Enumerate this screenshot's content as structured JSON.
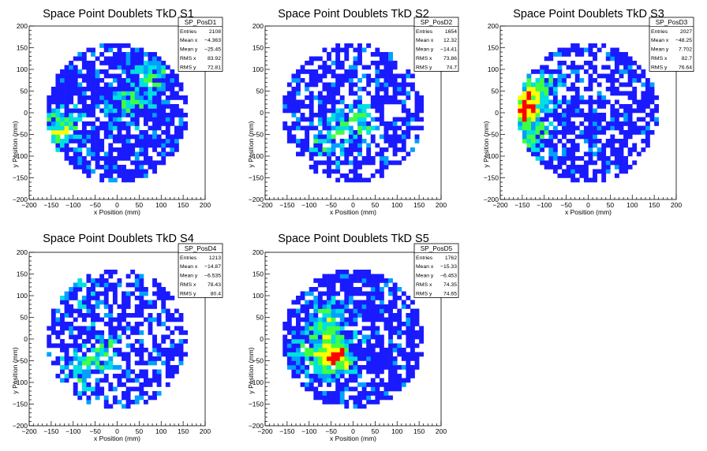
{
  "canvas": {
    "background": "#ffffff",
    "axis_color": "#000000"
  },
  "palette": [
    "#1a1aff",
    "#00a0ff",
    "#00e0e0",
    "#40ff40",
    "#ffff00",
    "#ff0000"
  ],
  "chart_data": [
    {
      "type": "heatmap",
      "title": "Space Point Doublets TkD S1",
      "xlabel": "x Position (mm)",
      "ylabel": "y Position (mm)",
      "xlim": [
        -200,
        200
      ],
      "ylim": [
        -200,
        200
      ],
      "xticks": [
        "−200",
        "−150",
        "−100",
        "−50",
        "0",
        "50",
        "100",
        "150",
        "200"
      ],
      "yticks": [
        "−200",
        "−150",
        "−100",
        "−50",
        "0",
        "50",
        "100",
        "150",
        "200"
      ],
      "bin_width": 10,
      "radius": 160,
      "seed": 11,
      "fill_probability": 0.78,
      "hotspots": [
        [
          -130,
          -40,
          2.2
        ],
        [
          30,
          20,
          1.4
        ],
        [
          80,
          90,
          1.2
        ]
      ],
      "stats": {
        "name": "SP_PosD1",
        "rows": [
          [
            "Entries",
            "2108"
          ],
          [
            "Mean x",
            "−4.363"
          ],
          [
            "Mean y",
            "−25.45"
          ],
          [
            "RMS x",
            "83.92"
          ],
          [
            "RMS y",
            "72.81"
          ]
        ]
      }
    },
    {
      "type": "heatmap",
      "title": "Space Point Doublets TkD S2",
      "xlabel": "x Position (mm)",
      "ylabel": "y Position (mm)",
      "xlim": [
        -200,
        200
      ],
      "ylim": [
        -200,
        200
      ],
      "xticks": [
        "−200",
        "−150",
        "−100",
        "−50",
        "0",
        "50",
        "100",
        "150",
        "200"
      ],
      "yticks": [
        "−200",
        "−150",
        "−100",
        "−50",
        "0",
        "50",
        "100",
        "150",
        "200"
      ],
      "bin_width": 10,
      "radius": 160,
      "seed": 23,
      "fill_probability": 0.62,
      "hotspots": [
        [
          10,
          -20,
          1.5
        ],
        [
          -60,
          -60,
          1.2
        ]
      ],
      "stats": {
        "name": "SP_PosD2",
        "rows": [
          [
            "Entries",
            "1654"
          ],
          [
            "Mean x",
            "12.32"
          ],
          [
            "Mean y",
            "−14.41"
          ],
          [
            "RMS x",
            "73.86"
          ],
          [
            "RMS y",
            "74.7"
          ]
        ]
      }
    },
    {
      "type": "heatmap",
      "title": "Space Point Doublets TkD S3",
      "xlabel": "x Position (mm)",
      "ylabel": "y Position (mm)",
      "xlim": [
        -200,
        200
      ],
      "ylim": [
        -200,
        200
      ],
      "xticks": [
        "−200",
        "−150",
        "−100",
        "−50",
        "0",
        "50",
        "100",
        "150",
        "200"
      ],
      "yticks": [
        "−200",
        "−150",
        "−100",
        "−50",
        "0",
        "50",
        "100",
        "150",
        "200"
      ],
      "bin_width": 10,
      "radius": 160,
      "seed": 37,
      "fill_probability": 0.66,
      "hotspots": [
        [
          -145,
          10,
          3.2
        ],
        [
          -110,
          60,
          1.6
        ],
        [
          -120,
          -60,
          1.3
        ]
      ],
      "stats": {
        "name": "SP_PosD3",
        "rows": [
          [
            "Entries",
            "2027"
          ],
          [
            "Mean x",
            "−48.25"
          ],
          [
            "Mean y",
            "7.702"
          ],
          [
            "RMS x",
            "82.7"
          ],
          [
            "RMS y",
            "76.64"
          ]
        ]
      }
    },
    {
      "type": "heatmap",
      "title": "Space Point Doublets TkD S4",
      "xlabel": "x Position (mm)",
      "ylabel": "y Position (mm)",
      "xlim": [
        -200,
        200
      ],
      "ylim": [
        -200,
        200
      ],
      "xticks": [
        "−200",
        "−150",
        "−100",
        "−50",
        "0",
        "50",
        "100",
        "150",
        "200"
      ],
      "yticks": [
        "−200",
        "−150",
        "−100",
        "−50",
        "0",
        "50",
        "100",
        "150",
        "200"
      ],
      "bin_width": 10,
      "radius": 160,
      "seed": 41,
      "fill_probability": 0.58,
      "hotspots": [
        [
          -40,
          -30,
          1.6
        ],
        [
          -80,
          -90,
          1.3
        ],
        [
          -90,
          110,
          1.0
        ]
      ],
      "stats": {
        "name": "SP_PosD4",
        "rows": [
          [
            "Entries",
            "1213"
          ],
          [
            "Mean x",
            "−14.87"
          ],
          [
            "Mean y",
            "−6.535"
          ],
          [
            "RMS x",
            "78.43"
          ],
          [
            "RMS y",
            "80.4"
          ]
        ]
      }
    },
    {
      "type": "heatmap",
      "title": "Space Point Doublets TkD S5",
      "xlabel": "x Position (mm)",
      "ylabel": "y Position (mm)",
      "xlim": [
        -200,
        200
      ],
      "ylim": [
        -200,
        200
      ],
      "xticks": [
        "−200",
        "−150",
        "−100",
        "−50",
        "0",
        "50",
        "100",
        "150",
        "200"
      ],
      "yticks": [
        "−200",
        "−150",
        "−100",
        "−50",
        "0",
        "50",
        "100",
        "150",
        "200"
      ],
      "bin_width": 10,
      "radius": 160,
      "seed": 53,
      "fill_probability": 0.74,
      "hotspots": [
        [
          -40,
          -40,
          3.4
        ],
        [
          -50,
          40,
          1.8
        ],
        [
          -110,
          -20,
          1.2
        ]
      ],
      "stats": {
        "name": "SP_PosD5",
        "rows": [
          [
            "Entries",
            "1762"
          ],
          [
            "Mean x",
            "−15.33"
          ],
          [
            "Mean y",
            "−6.453"
          ],
          [
            "RMS x",
            "74.35"
          ],
          [
            "RMS y",
            "74.65"
          ]
        ]
      }
    }
  ]
}
